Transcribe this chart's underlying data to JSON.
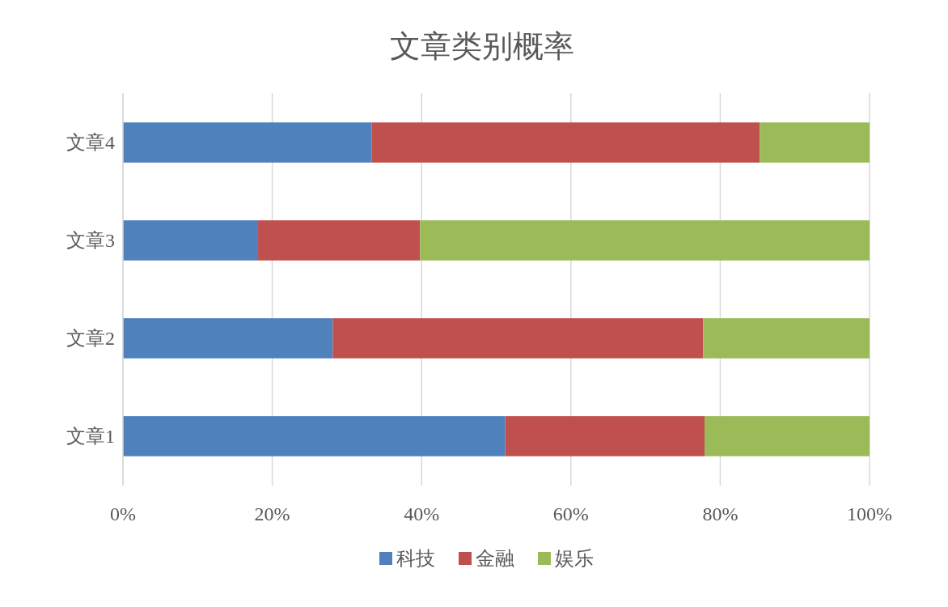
{
  "chart_data": {
    "type": "bar",
    "orientation": "horizontal",
    "stacked": true,
    "title": "文章类别概率",
    "categories": [
      "文章4",
      "文章3",
      "文章2",
      "文章1"
    ],
    "series": [
      {
        "name": "科技",
        "color": "#4f81bd",
        "values": [
          33.3,
          18.1,
          28.1,
          51.2
        ]
      },
      {
        "name": "金融",
        "color": "#c0504d",
        "values": [
          52.0,
          21.7,
          49.6,
          26.7
        ]
      },
      {
        "name": "娱乐",
        "color": "#9bbb59",
        "values": [
          14.7,
          60.2,
          22.3,
          22.1
        ]
      }
    ],
    "xlim": [
      0,
      100
    ],
    "xticks": [
      {
        "value": 0,
        "label": "0%"
      },
      {
        "value": 20,
        "label": "20%"
      },
      {
        "value": 40,
        "label": "40%"
      },
      {
        "value": 60,
        "label": "60%"
      },
      {
        "value": 80,
        "label": "80%"
      },
      {
        "value": 100,
        "label": "100%"
      }
    ],
    "grid": "x",
    "legend": "bottom"
  }
}
